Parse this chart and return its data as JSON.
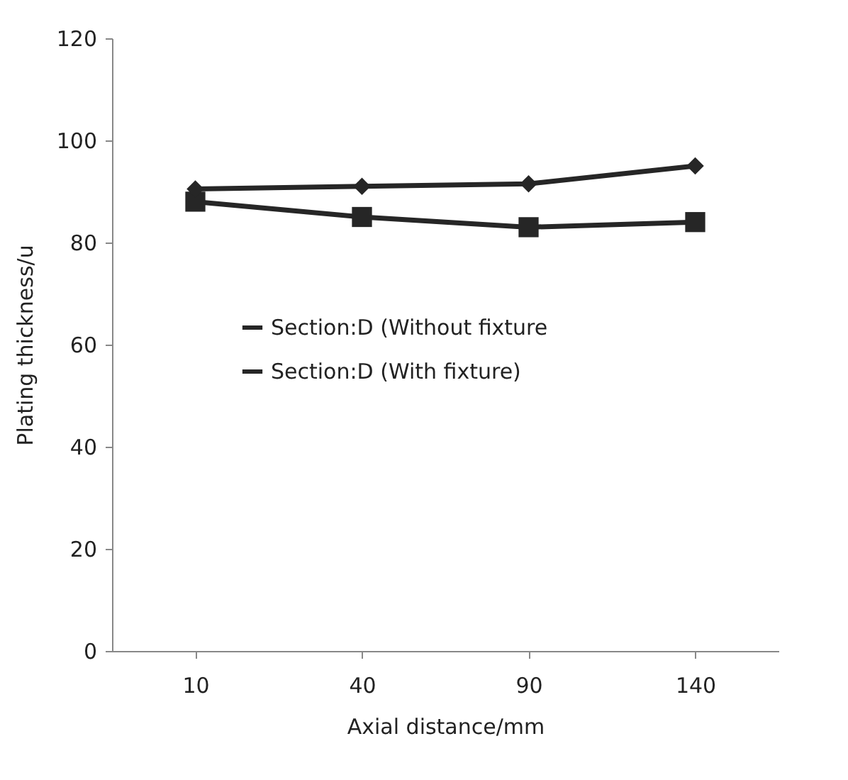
{
  "chart_data": {
    "type": "line",
    "xlabel": "Axial distance/mm",
    "ylabel": "Plating thickness/u",
    "categories": [
      "10",
      "40",
      "90",
      "140"
    ],
    "series": [
      {
        "name": "Section:D (Without fixture",
        "color": "#262626",
        "marker": "square",
        "values": [
          88,
          85,
          83,
          84
        ]
      },
      {
        "name": "Section:D (With fixture)",
        "color": "#262626",
        "marker": "diamond",
        "values": [
          90.5,
          91,
          91.5,
          95
        ]
      }
    ],
    "ylim": [
      0,
      120
    ],
    "yticks": [
      0,
      20,
      40,
      60,
      80,
      100,
      120
    ],
    "grid": false,
    "legend": "center left",
    "line_style": "solid"
  }
}
